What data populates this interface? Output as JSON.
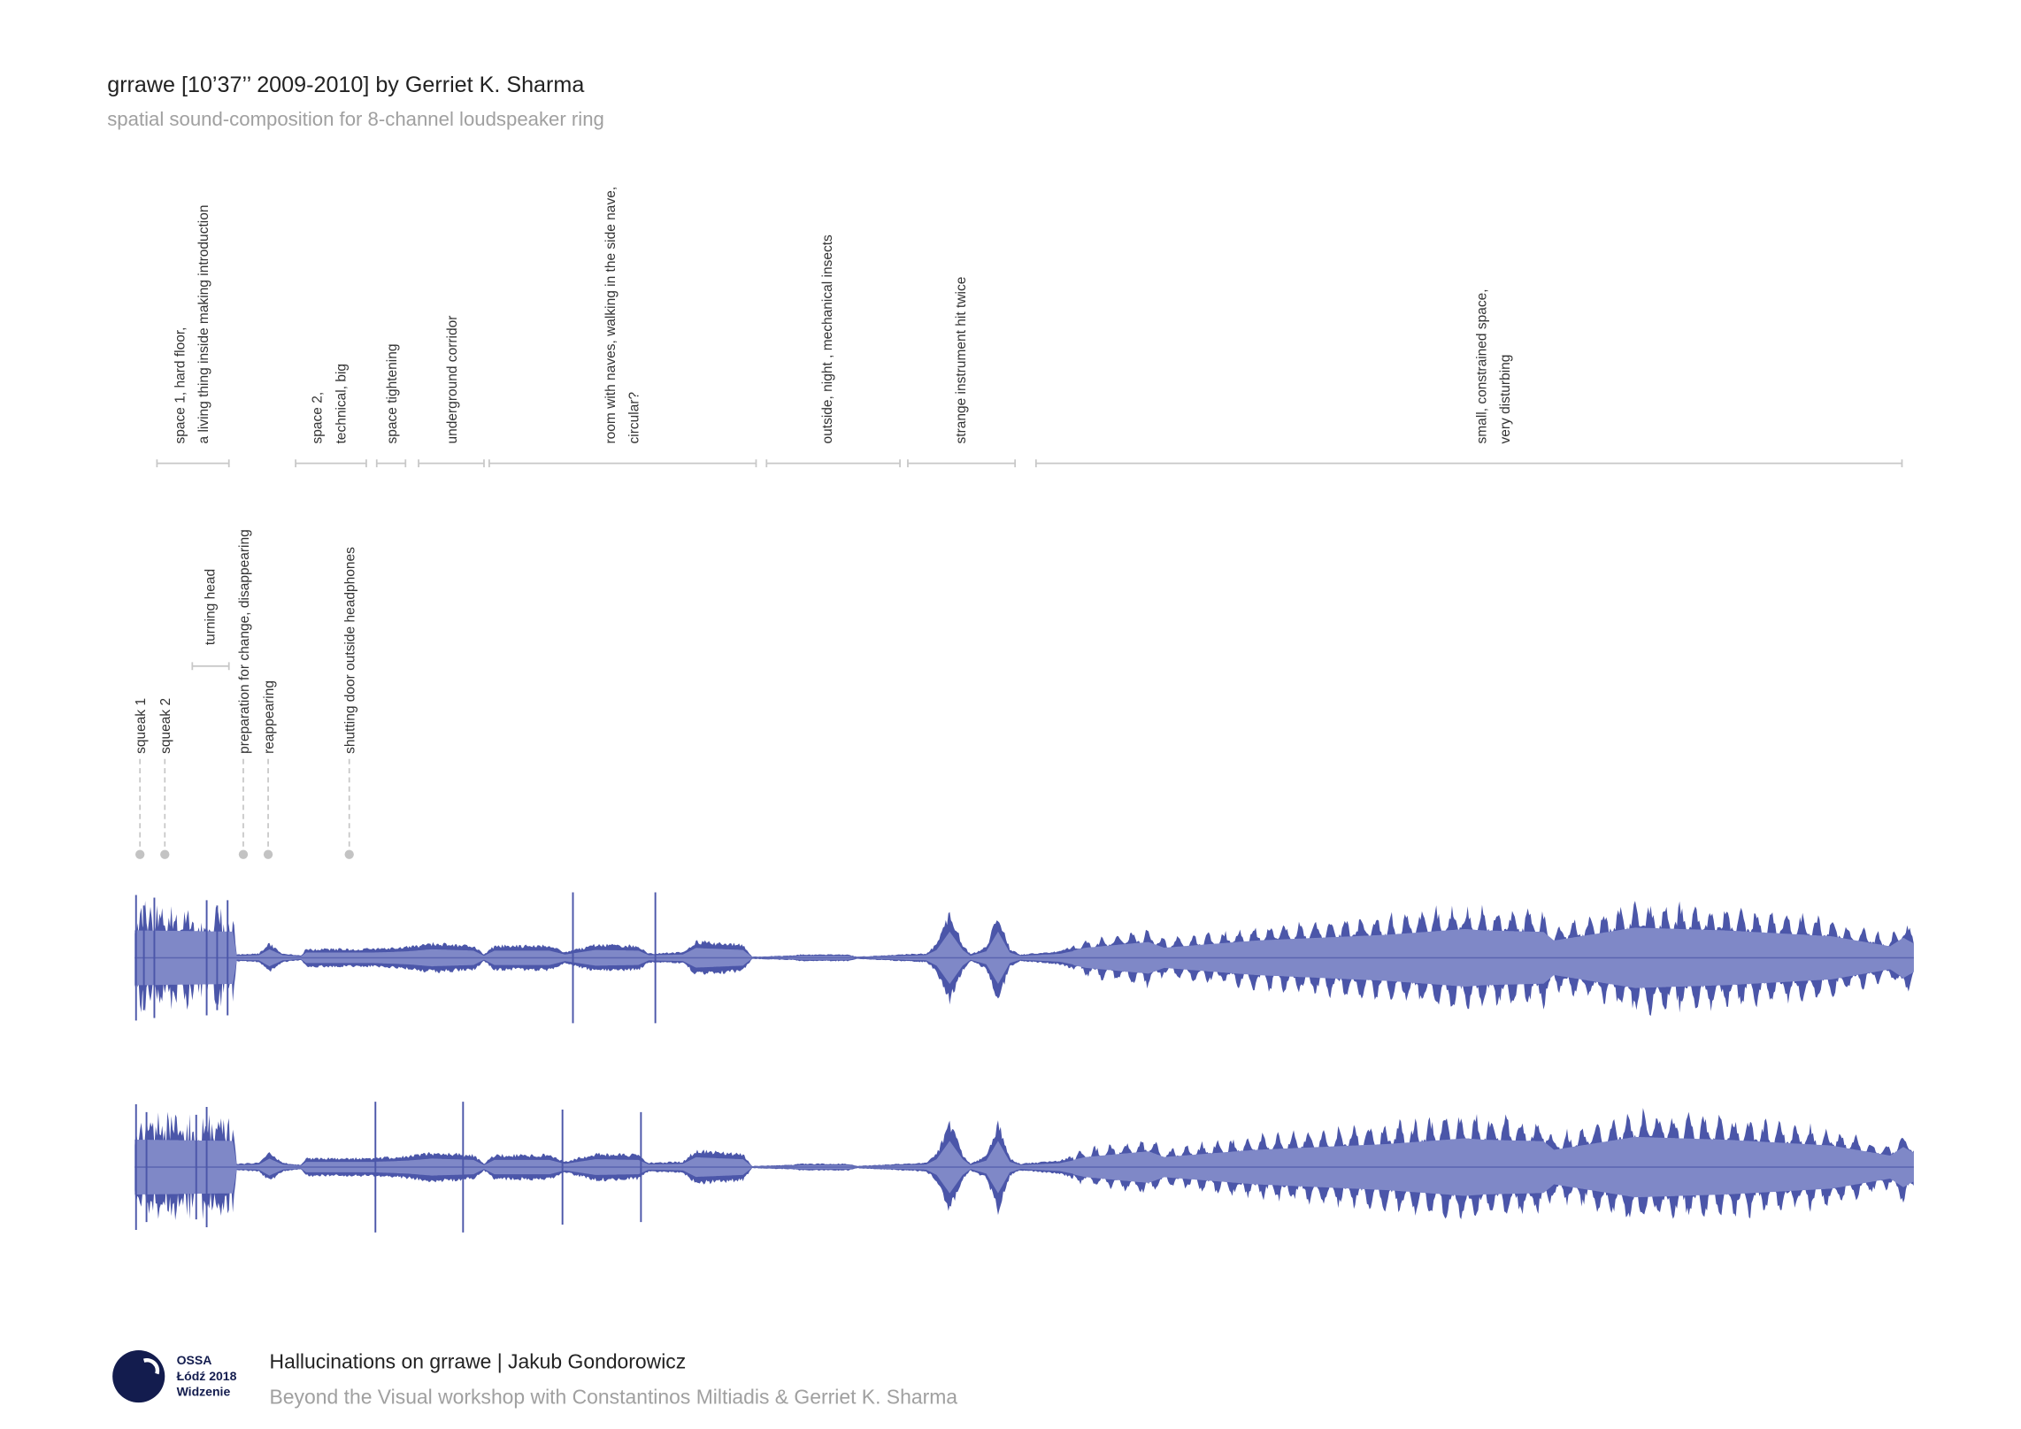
{
  "header": {
    "title": "grrawe [10’37’’ 2009-2010] by Gerriet K. Sharma",
    "subtitle": "spatial sound-composition for 8-channel loudspeaker ring"
  },
  "segments": [
    {
      "label": [
        "space 1, hard floor,",
        "a living thing inside making introduction"
      ]
    },
    {
      "label": [
        "space 2,",
        "technical, big"
      ]
    },
    {
      "label": [
        "space tightening"
      ]
    },
    {
      "label": [
        "underground corridor"
      ]
    },
    {
      "label": [
        "room with naves, walking in the side nave,",
        "circular?"
      ]
    },
    {
      "label": [
        "outside, night , mechanical insects"
      ]
    },
    {
      "label": [
        "strange instrument hit twice"
      ]
    },
    {
      "label": [
        "small, constrained space,",
        "very disturbing"
      ]
    }
  ],
  "span_events": [
    {
      "label": "turning head"
    }
  ],
  "events": [
    {
      "label": "squeak 1"
    },
    {
      "label": "squeak 2"
    },
    {
      "label": "preparation for change, disappearing"
    },
    {
      "label": "reappearing"
    },
    {
      "label": "shutting door outside headphones"
    }
  ],
  "footer": {
    "logo": [
      "OSSA",
      "Łódź 2018",
      "Widzenie"
    ],
    "title": "Hallucinations on grrawe | Jakub Gondorowicz",
    "subtitle": "Beyond the Visual workshop with Constantinos Miltiadis & Gerriet K. Sharma"
  }
}
